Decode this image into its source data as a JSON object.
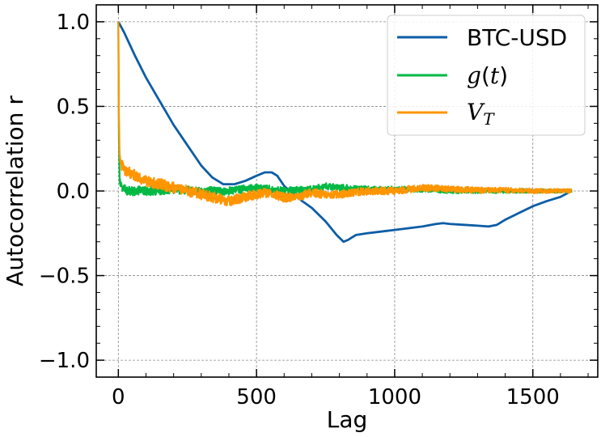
{
  "chart_data": {
    "type": "line",
    "title": "",
    "xlabel": "Lag",
    "ylabel": "Autocorrelation r",
    "xlim": [
      -80,
      1735
    ],
    "ylim": [
      -1.1,
      1.1
    ],
    "xticks": [
      0,
      500,
      1000,
      1500
    ],
    "yticks": [
      1.0,
      0.5,
      0.0,
      -0.5,
      -1.0
    ],
    "xtick_labels": [
      "0",
      "500",
      "1000",
      "1500"
    ],
    "ytick_labels": [
      "1.0",
      "0.5",
      "0.0",
      "−0.5",
      "−1.0"
    ],
    "grid": true,
    "legend_position": "top-right",
    "series": [
      {
        "name": "BTC-USD",
        "color": "#0c5da5",
        "noise": 0,
        "x": [
          0,
          20,
          60,
          100,
          150,
          200,
          250,
          300,
          340,
          380,
          420,
          460,
          500,
          530,
          555,
          575,
          600,
          640,
          700,
          750,
          790,
          815,
          830,
          860,
          900,
          950,
          1000,
          1050,
          1100,
          1150,
          1175,
          1200,
          1250,
          1300,
          1340,
          1370,
          1400,
          1450,
          1500,
          1550,
          1600,
          1640
        ],
        "y": [
          1.0,
          0.94,
          0.8,
          0.67,
          0.53,
          0.39,
          0.27,
          0.15,
          0.08,
          0.04,
          0.04,
          0.06,
          0.09,
          0.11,
          0.11,
          0.09,
          0.03,
          -0.03,
          -0.1,
          -0.18,
          -0.26,
          -0.3,
          -0.29,
          -0.26,
          -0.25,
          -0.24,
          -0.23,
          -0.22,
          -0.21,
          -0.195,
          -0.19,
          -0.195,
          -0.2,
          -0.205,
          -0.21,
          -0.2,
          -0.17,
          -0.13,
          -0.09,
          -0.06,
          -0.035,
          0.0
        ]
      },
      {
        "name": "g(t)",
        "color": "#00b945",
        "noise": 0.028,
        "x": [
          0,
          2,
          5,
          10,
          30,
          100,
          200,
          300,
          400,
          500,
          600,
          700,
          760,
          800,
          900,
          1000,
          1100,
          1200,
          1300,
          1400,
          1500,
          1640
        ],
        "y": [
          1.0,
          0.3,
          0.06,
          0.03,
          0.0,
          0.0,
          0.01,
          0.0,
          0.0,
          0.02,
          0.0,
          0.01,
          0.03,
          0.02,
          0.01,
          0.01,
          0.01,
          0.0,
          0.0,
          0.0,
          0.0,
          0.0
        ]
      },
      {
        "name": "V_T",
        "color": "#ff9500",
        "noise": 0.035,
        "x": [
          0,
          2,
          5,
          10,
          30,
          60,
          100,
          150,
          200,
          250,
          300,
          350,
          400,
          450,
          500,
          550,
          600,
          650,
          700,
          750,
          800,
          900,
          1000,
          1100,
          1200,
          1300,
          1400,
          1500,
          1640
        ],
        "y": [
          1.0,
          0.45,
          0.2,
          0.15,
          0.12,
          0.09,
          0.06,
          0.04,
          0.02,
          0.0,
          -0.02,
          -0.04,
          -0.06,
          -0.04,
          -0.02,
          -0.01,
          -0.04,
          -0.03,
          -0.01,
          -0.02,
          -0.02,
          0.0,
          0.0,
          0.02,
          0.01,
          0.005,
          0.005,
          0.0,
          0.0
        ]
      }
    ]
  }
}
